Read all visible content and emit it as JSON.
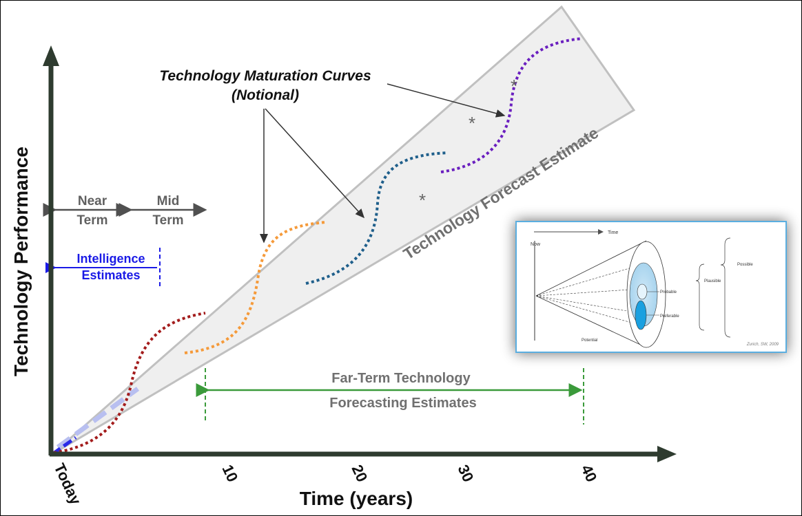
{
  "axes": {
    "y_label": "Technology Performance",
    "x_label": "Time (years)",
    "x_ticks": [
      "Today",
      "10",
      "20",
      "30",
      "40"
    ]
  },
  "maturation": {
    "title_line1": "Technology Maturation Curves",
    "title_line2": "(Notional)"
  },
  "forecast_band_label": "Technology Forecast Estimate",
  "near_term": {
    "line1": "Near",
    "line2": "Term"
  },
  "mid_term": {
    "line1": "Mid",
    "line2": "Term"
  },
  "intelligence": {
    "line1": "Intelligence",
    "line2": "Estimates"
  },
  "far_term": {
    "line1": "Far-Term Technology",
    "line2": "Forecasting Estimates"
  },
  "inset": {
    "time_label": "Time",
    "now_label": "Now",
    "possible_label": "Possible",
    "plausible_label": "Plausible",
    "probable_label": "Probable",
    "preferable_label": "Preferable",
    "potential_label": "Potential",
    "credit": "Zurich, SW, 2009"
  },
  "colors": {
    "axis": "#2e3b2f",
    "band_fill": "#efefef",
    "band_stroke": "#c0c0c0",
    "curve_red": "#a31c1c",
    "curve_orange": "#f59a3a",
    "curve_teal": "#1f5f8b",
    "curve_purple": "#6a1fbf",
    "near_mid": "#505050",
    "intel": "#1a1ae6",
    "far_term": "#3a9a3a",
    "inset_border": "#5aaee0"
  }
}
